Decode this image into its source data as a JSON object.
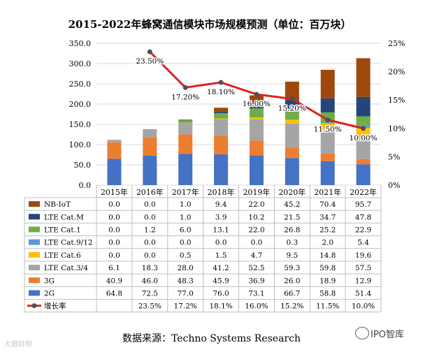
{
  "chart_data": {
    "type": "bar",
    "stacked": true,
    "title": "2015-2022年蜂窝通信模块市场规模预测（单位：百万块）",
    "categories": [
      "2015年",
      "2016年",
      "2017年",
      "2018年",
      "2019年",
      "2020年",
      "2021年",
      "2022年"
    ],
    "ylim": [
      0,
      350
    ],
    "yticks": [
      "0.0",
      "50.0",
      "100.0",
      "150.0",
      "200.0",
      "250.0",
      "300.0",
      "350.0"
    ],
    "y2lim": [
      0,
      25
    ],
    "y2ticks": [
      "0%",
      "5%",
      "10%",
      "15%",
      "20%",
      "25%"
    ],
    "series": [
      {
        "name": "2G",
        "color": "#4472c4",
        "values": [
          64.8,
          72.5,
          77.0,
          76.0,
          73.1,
          66.7,
          58.8,
          51.4
        ],
        "labels": [
          "64.8",
          "72.5",
          "77.0",
          "76.0",
          "73.1",
          "66.7",
          "58.8",
          "51.4"
        ]
      },
      {
        "name": "3G",
        "color": "#ed7d31",
        "values": [
          40.9,
          46.0,
          48.3,
          45.9,
          36.9,
          26.0,
          18.9,
          12.9
        ],
        "labels": [
          "40.9",
          "46.0",
          "48.3",
          "45.9",
          "36.9",
          "26.0",
          "18.9",
          "12.9"
        ]
      },
      {
        "name": "LTE Cat.3/4",
        "color": "#a5a5a5",
        "values": [
          6.1,
          18.3,
          28.0,
          41.2,
          52.5,
          59.3,
          59.8,
          57.5
        ],
        "labels": [
          "6.1",
          "18.3",
          "28.0",
          "41.2",
          "52.5",
          "59.3",
          "59.8",
          "57.5"
        ]
      },
      {
        "name": "LTE Cat.6",
        "color": "#ffc000",
        "values": [
          0.0,
          0.0,
          0.5,
          1.5,
          4.7,
          9.5,
          14.8,
          19.6
        ],
        "labels": [
          "0.0",
          "0.0",
          "0.5",
          "1.5",
          "4.7",
          "9.5",
          "14.8",
          "19.6"
        ]
      },
      {
        "name": "LTE Cat.9/12",
        "color": "#5b9bd5",
        "values": [
          0.0,
          0.0,
          0.0,
          0.0,
          0.0,
          0.3,
          2.0,
          5.4
        ],
        "labels": [
          "0.0",
          "0.0",
          "0.0",
          "0.0",
          "0.0",
          "0.3",
          "2.0",
          "5.4"
        ]
      },
      {
        "name": "LTE Cat.1",
        "color": "#70ad47",
        "values": [
          0.0,
          1.2,
          6.0,
          13.1,
          22.0,
          26.8,
          25.2,
          22.9
        ],
        "labels": [
          "0.0",
          "1.2",
          "6.0",
          "13.1",
          "22.0",
          "26.8",
          "25.2",
          "22.9"
        ]
      },
      {
        "name": "LTE Cat.M",
        "color": "#264478",
        "values": [
          0.0,
          0.0,
          1.0,
          3.9,
          10.2,
          21.5,
          34.7,
          47.8
        ],
        "labels": [
          "0.0",
          "0.0",
          "1.0",
          "3.9",
          "10.2",
          "21.5",
          "34.7",
          "47.8"
        ]
      },
      {
        "name": "NB-IoT",
        "color": "#9e480e",
        "values": [
          0.0,
          0.0,
          1.0,
          9.4,
          22.0,
          45.2,
          70.4,
          95.7
        ],
        "labels": [
          "0.0",
          "0.0",
          "1.0",
          "9.4",
          "22.0",
          "45.2",
          "70.4",
          "95.7"
        ]
      }
    ],
    "growth": {
      "name": "增长率",
      "color": "#e02020",
      "marker_color": "#505050",
      "values": [
        null,
        23.5,
        17.2,
        18.1,
        16.0,
        15.2,
        11.5,
        10.0
      ],
      "point_labels": [
        null,
        "23.50%",
        "17.20%",
        "18.10%",
        "16.00%",
        "15.20%",
        "11.50%",
        "10.00%"
      ],
      "table_labels": [
        "",
        "23.5%",
        "17.2%",
        "18.1%",
        "16.0%",
        "15.2%",
        "11.5%",
        "10.0%"
      ]
    }
  },
  "source_text": "数据来源：Techno Systems Research",
  "watermark_left": "大鼓财税",
  "watermark_right": "IPO智库"
}
